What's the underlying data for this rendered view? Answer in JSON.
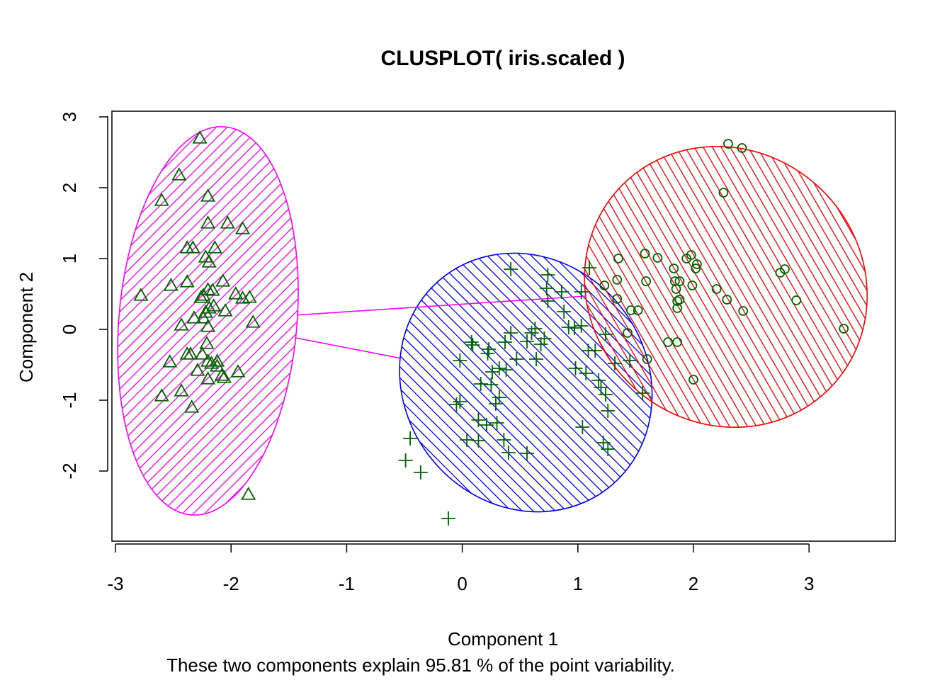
{
  "chart_data": {
    "type": "scatter",
    "title": "CLUSPLOT( iris.scaled )",
    "xlabel": "Component 1",
    "ylabel": "Component 2",
    "subtitle": "These two components explain 95.81 % of the point variability.",
    "xlim": [
      -3.0,
      3.5
    ],
    "ylim": [
      -2.95,
      3.05
    ],
    "xticks": [
      "-3",
      "-2",
      "-1",
      "0",
      "1",
      "2",
      "3"
    ],
    "yticks": [
      "-2",
      "-1",
      "0",
      "1",
      "2",
      "3"
    ],
    "grid": false,
    "legend": "none",
    "point_color": "#006400",
    "clusters": [
      {
        "id": 1,
        "color": "#ff00ff",
        "symbol": "triangle",
        "hatch_angle": -45,
        "ellipse": {
          "cx": -2.2,
          "cy": 0.12,
          "rx": 0.77,
          "ry": 2.75,
          "angle": -5
        },
        "points": [
          [
            -2.27,
            2.7
          ],
          [
            -2.45,
            2.18
          ],
          [
            -2.6,
            1.82
          ],
          [
            -2.2,
            1.88
          ],
          [
            -2.2,
            1.5
          ],
          [
            -2.03,
            1.5
          ],
          [
            -1.9,
            1.42
          ],
          [
            -2.38,
            1.15
          ],
          [
            -2.33,
            1.15
          ],
          [
            -2.14,
            1.15
          ],
          [
            -2.22,
            1.02
          ],
          [
            -2.19,
            0.95
          ],
          [
            -2.07,
            0.68
          ],
          [
            -2.38,
            0.67
          ],
          [
            -2.52,
            0.62
          ],
          [
            -2.2,
            0.56
          ],
          [
            -2.16,
            0.55
          ],
          [
            -2.24,
            0.48
          ],
          [
            -2.26,
            0.45
          ],
          [
            -2.78,
            0.48
          ],
          [
            -1.96,
            0.5
          ],
          [
            -1.9,
            0.44
          ],
          [
            -1.84,
            0.45
          ],
          [
            -2.19,
            0.3
          ],
          [
            -2.15,
            0.33
          ],
          [
            -2.22,
            0.24
          ],
          [
            -2.05,
            0.26
          ],
          [
            -2.32,
            0.16
          ],
          [
            -2.24,
            0.16
          ],
          [
            -2.2,
            0.04
          ],
          [
            -2.43,
            0.06
          ],
          [
            -1.81,
            0.1
          ],
          [
            -2.21,
            -0.2
          ],
          [
            -2.38,
            -0.35
          ],
          [
            -2.35,
            -0.35
          ],
          [
            -2.53,
            -0.46
          ],
          [
            -2.2,
            -0.45
          ],
          [
            -2.17,
            -0.48
          ],
          [
            -2.12,
            -0.45
          ],
          [
            -2.29,
            -0.58
          ],
          [
            -2.08,
            -0.65
          ],
          [
            -2.06,
            -0.68
          ],
          [
            -2.2,
            -0.7
          ],
          [
            -1.94,
            -0.6
          ],
          [
            -2.6,
            -0.94
          ],
          [
            -2.43,
            -0.87
          ],
          [
            -2.34,
            -1.1
          ],
          [
            -1.85,
            -2.33
          ],
          [
            -2.25,
            -0.35
          ],
          [
            -2.12,
            -0.52
          ]
        ]
      },
      {
        "id": 2,
        "color": "#0000ff",
        "symbol": "plus",
        "hatch_angle": 45,
        "ellipse": {
          "cx": 0.55,
          "cy": -0.75,
          "rx": 1.05,
          "ry": 1.89,
          "angle": 38
        },
        "points": [
          [
            0.42,
            0.85
          ],
          [
            0.74,
            0.77
          ],
          [
            1.1,
            0.87
          ],
          [
            0.73,
            0.58
          ],
          [
            0.74,
            0.4
          ],
          [
            0.86,
            0.53
          ],
          [
            1.03,
            0.53
          ],
          [
            0.88,
            0.25
          ],
          [
            0.92,
            0.03
          ],
          [
            0.97,
            0.02
          ],
          [
            1.03,
            0.05
          ],
          [
            0.63,
            0.01
          ],
          [
            0.6,
            -0.05
          ],
          [
            0.42,
            -0.05
          ],
          [
            0.71,
            -0.13
          ],
          [
            0.56,
            -0.17
          ],
          [
            0.68,
            -0.21
          ],
          [
            0.37,
            -0.18
          ],
          [
            0.08,
            -0.18
          ],
          [
            0.09,
            -0.22
          ],
          [
            0.23,
            -0.28
          ],
          [
            0.22,
            -0.34
          ],
          [
            1.09,
            -0.3
          ],
          [
            1.15,
            -0.3
          ],
          [
            1.24,
            -0.07
          ],
          [
            0.47,
            -0.42
          ],
          [
            0.64,
            -0.42
          ],
          [
            -0.02,
            -0.44
          ],
          [
            0.32,
            -0.55
          ],
          [
            0.38,
            -0.57
          ],
          [
            0.26,
            -0.6
          ],
          [
            0.98,
            -0.55
          ],
          [
            1.07,
            -0.62
          ],
          [
            1.18,
            -0.72
          ],
          [
            1.2,
            -0.82
          ],
          [
            0.16,
            -0.77
          ],
          [
            0.25,
            -0.78
          ],
          [
            0.32,
            -0.96
          ],
          [
            0.29,
            -1.05
          ],
          [
            -0.02,
            -1.02
          ],
          [
            -0.05,
            -1.06
          ],
          [
            0.14,
            -1.28
          ],
          [
            0.21,
            -1.35
          ],
          [
            0.3,
            -1.32
          ],
          [
            1.04,
            -1.38
          ],
          [
            0.04,
            -1.56
          ],
          [
            0.14,
            -1.57
          ],
          [
            0.36,
            -1.56
          ],
          [
            0.4,
            -1.74
          ],
          [
            0.56,
            -1.75
          ],
          [
            -0.45,
            -1.54
          ],
          [
            -0.49,
            -1.85
          ],
          [
            -0.36,
            -2.02
          ],
          [
            -0.12,
            -2.67
          ],
          [
            1.22,
            -1.6
          ],
          [
            1.26,
            -1.69
          ],
          [
            1.26,
            -1.15
          ],
          [
            1.24,
            -0.92
          ],
          [
            1.32,
            -0.48
          ],
          [
            1.45,
            -0.44
          ],
          [
            1.56,
            -0.9
          ]
        ]
      },
      {
        "id": 3,
        "color": "#ff0000",
        "symbol": "circle",
        "hatch_angle": 60,
        "ellipse": {
          "cx": 2.28,
          "cy": 0.6,
          "rx": 1.18,
          "ry": 2.05,
          "angle": 48
        },
        "points": [
          [
            2.3,
            2.62
          ],
          [
            2.42,
            2.56
          ],
          [
            2.26,
            1.93
          ],
          [
            1.58,
            1.07
          ],
          [
            1.98,
            1.05
          ],
          [
            1.35,
            1.0
          ],
          [
            1.69,
            1.01
          ],
          [
            1.94,
            1.0
          ],
          [
            2.03,
            0.92
          ],
          [
            2.02,
            0.86
          ],
          [
            1.83,
            0.86
          ],
          [
            2.79,
            0.85
          ],
          [
            2.75,
            0.8
          ],
          [
            1.34,
            0.7
          ],
          [
            1.59,
            0.68
          ],
          [
            1.84,
            0.68
          ],
          [
            1.88,
            0.68
          ],
          [
            1.85,
            0.57
          ],
          [
            1.99,
            0.62
          ],
          [
            2.2,
            0.57
          ],
          [
            1.23,
            0.62
          ],
          [
            1.34,
            0.43
          ],
          [
            1.86,
            0.4
          ],
          [
            1.88,
            0.42
          ],
          [
            2.29,
            0.42
          ],
          [
            2.89,
            0.41
          ],
          [
            1.86,
            0.3
          ],
          [
            1.46,
            0.27
          ],
          [
            1.52,
            0.27
          ],
          [
            2.43,
            0.26
          ],
          [
            3.3,
            0.01
          ],
          [
            1.43,
            -0.05
          ],
          [
            1.78,
            -0.18
          ],
          [
            1.86,
            -0.18
          ],
          [
            1.6,
            -0.42
          ],
          [
            2.0,
            -0.71
          ]
        ]
      }
    ],
    "connecting_lines": [
      {
        "from": 1,
        "to": 2,
        "color": "#ff00ff"
      },
      {
        "from": 1,
        "to": 3,
        "color": "#ff00ff"
      }
    ]
  }
}
